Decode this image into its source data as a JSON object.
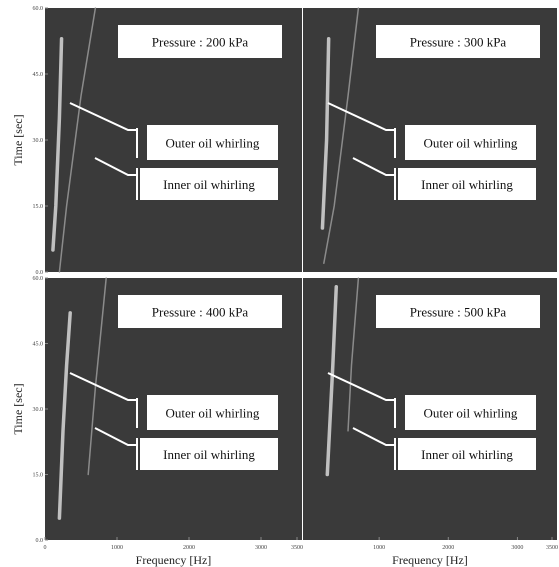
{
  "chart_data": [
    {
      "type": "spectrogram",
      "xlim": [
        0,
        3500
      ],
      "ylim": [
        0,
        60
      ],
      "ylabel": "Time  [sec]",
      "yticks": [
        {
          "value": 0,
          "label": "0.0"
        },
        {
          "value": 15,
          "label": "15.0"
        },
        {
          "value": 30,
          "label": "30.0"
        },
        {
          "value": 45,
          "label": "45.0"
        },
        {
          "value": 60,
          "label": "60.0"
        }
      ],
      "annotations": [
        "Pressure : 200 kPa",
        "Outer oil whirling",
        "Inner oil whirling"
      ],
      "series": [
        {
          "color": "#d8d8d8",
          "x": [
            230,
            200,
            150,
            110
          ],
          "y": [
            53,
            35,
            15,
            5
          ]
        },
        {
          "color": "#9a9a9a",
          "x": [
            700,
            500,
            300,
            200
          ],
          "y": [
            60,
            40,
            15,
            0
          ]
        }
      ]
    },
    {
      "type": "spectrogram",
      "xlim": [
        0,
        3500
      ],
      "ylim": [
        0,
        60
      ],
      "annotations": [
        "Pressure : 300 kPa",
        "Outer oil whirling",
        "Inner oil whirling"
      ],
      "series": [
        {
          "color": "#d8d8d8",
          "x": [
            270,
            240,
            180
          ],
          "y": [
            53,
            30,
            10
          ]
        },
        {
          "color": "#9a9a9a",
          "x": [
            700,
            550,
            350,
            200
          ],
          "y": [
            60,
            40,
            15,
            2
          ]
        }
      ]
    },
    {
      "type": "spectrogram",
      "xlim": [
        0,
        3500
      ],
      "ylim": [
        0,
        60
      ],
      "ylabel": "Time  [sec]",
      "xlabel": "Frequency [Hz]",
      "yticks": [
        {
          "value": 0,
          "label": "0.0"
        },
        {
          "value": 15,
          "label": "15.0"
        },
        {
          "value": 30,
          "label": "30.0"
        },
        {
          "value": 45,
          "label": "45.0"
        },
        {
          "value": 60,
          "label": "60.0"
        }
      ],
      "xticks": [
        0,
        1000,
        2000,
        3000,
        3500
      ],
      "annotations": [
        "Pressure : 400 kPa",
        "Outer oil whirling",
        "Inner oil whirling"
      ],
      "series": [
        {
          "color": "#d8d8d8",
          "x": [
            350,
            300,
            250,
            200
          ],
          "y": [
            52,
            40,
            25,
            5
          ]
        },
        {
          "color": "#9a9a9a",
          "x": [
            850,
            700,
            600
          ],
          "y": [
            60,
            35,
            15
          ]
        }
      ]
    },
    {
      "type": "spectrogram",
      "xlim": [
        0,
        3500
      ],
      "ylim": [
        0,
        60
      ],
      "xlabel": "Frequency [Hz]",
      "xticks": [
        1000,
        2000,
        3000,
        3500
      ],
      "annotations": [
        "Pressure : 500 kPa",
        "Outer oil whirling",
        "Inner oil whirling"
      ],
      "series": [
        {
          "color": "#d8d8d8",
          "x": [
            380,
            330,
            250
          ],
          "y": [
            58,
            40,
            15
          ]
        },
        {
          "color": "#9a9a9a",
          "x": [
            700,
            600,
            550
          ],
          "y": [
            60,
            40,
            25
          ]
        }
      ]
    }
  ]
}
